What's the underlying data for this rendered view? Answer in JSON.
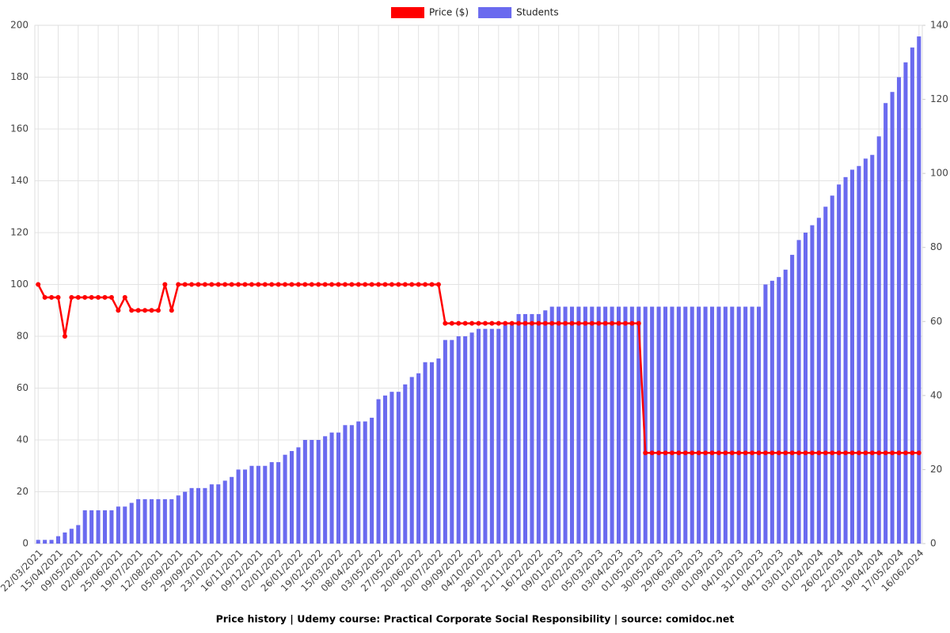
{
  "chart_data": {
    "type": "bar-line",
    "title": "Price history | Udemy course: Practical Corporate Social Responsibility | source: comidoc.net",
    "categories": [
      "22/03/2021",
      null,
      null,
      "15/04/2021",
      null,
      null,
      "09/05/2021",
      null,
      null,
      "02/06/2021",
      null,
      null,
      "25/06/2021",
      null,
      null,
      "19/07/2021",
      null,
      null,
      "12/08/2021",
      null,
      null,
      "05/09/2021",
      null,
      null,
      "29/09/2021",
      null,
      null,
      "23/10/2021",
      null,
      null,
      "16/11/2021",
      null,
      null,
      "09/12/2021",
      null,
      null,
      "02/01/2022",
      null,
      null,
      "26/01/2022",
      null,
      null,
      "19/02/2022",
      null,
      null,
      "15/03/2022",
      null,
      null,
      "08/04/2022",
      null,
      null,
      "03/05/2022",
      null,
      null,
      "27/05/2022",
      null,
      null,
      "20/06/2022",
      null,
      null,
      "20/07/2022",
      null,
      null,
      "09/09/2022",
      null,
      null,
      "04/10/2022",
      null,
      null,
      "28/10/2022",
      null,
      null,
      "21/11/2022",
      null,
      null,
      "16/12/2022",
      null,
      null,
      "09/01/2023",
      null,
      null,
      "02/02/2023",
      null,
      null,
      "05/03/2023",
      null,
      null,
      "03/04/2023",
      null,
      null,
      "01/05/2023",
      null,
      null,
      "30/05/2023",
      null,
      null,
      "29/06/2023",
      null,
      null,
      "03/08/2023",
      null,
      null,
      "01/09/2023",
      null,
      null,
      "04/10/2023",
      null,
      null,
      "31/10/2023",
      null,
      null,
      "04/12/2023",
      null,
      null,
      "03/01/2024",
      null,
      null,
      "01/02/2024",
      null,
      null,
      "26/02/2024",
      null,
      null,
      "22/03/2024",
      null,
      null,
      "19/04/2024",
      null,
      null,
      "17/05/2024",
      null,
      null,
      "16/06/2024"
    ],
    "series": [
      {
        "name": "Price ($)",
        "type": "line",
        "axis": "y",
        "color": "#ff0000",
        "values": [
          100,
          95,
          95,
          95,
          80,
          95,
          95,
          95,
          95,
          95,
          95,
          95,
          90,
          95,
          90,
          90,
          90,
          90,
          90,
          100,
          90,
          100,
          100,
          100,
          100,
          100,
          100,
          100,
          100,
          100,
          100,
          100,
          100,
          100,
          100,
          100,
          100,
          100,
          100,
          100,
          100,
          100,
          100,
          100,
          100,
          100,
          100,
          100,
          100,
          100,
          100,
          100,
          100,
          100,
          100,
          100,
          100,
          100,
          100,
          100,
          100,
          85,
          85,
          85,
          85,
          85,
          85,
          85,
          85,
          85,
          85,
          85,
          85,
          85,
          85,
          85,
          85,
          85,
          85,
          85,
          85,
          85,
          85,
          85,
          85,
          85,
          85,
          85,
          85,
          85,
          85,
          35,
          35,
          35,
          35,
          35,
          35,
          35,
          35,
          35,
          35,
          35,
          35,
          35,
          35,
          35,
          35,
          35,
          35,
          35,
          35,
          35,
          35,
          35,
          35,
          35,
          35,
          35,
          35,
          35,
          35,
          35,
          35,
          35,
          35,
          35,
          35,
          35,
          35,
          35,
          35,
          35,
          35
        ]
      },
      {
        "name": "Students",
        "type": "bar",
        "axis": "y2",
        "color": "#6a6aef",
        "values": [
          1,
          1,
          1,
          2,
          3,
          4,
          5,
          9,
          9,
          9,
          9,
          9,
          10,
          10,
          11,
          12,
          12,
          12,
          12,
          12,
          12,
          13,
          14,
          15,
          15,
          15,
          16,
          16,
          17,
          18,
          20,
          20,
          21,
          21,
          21,
          22,
          22,
          24,
          25,
          26,
          28,
          28,
          28,
          29,
          30,
          30,
          32,
          32,
          33,
          33,
          34,
          39,
          40,
          41,
          41,
          43,
          45,
          46,
          49,
          49,
          50,
          55,
          55,
          56,
          56,
          57,
          58,
          58,
          58,
          58,
          59,
          59,
          62,
          62,
          62,
          62,
          63,
          64,
          64,
          64,
          64,
          64,
          64,
          64,
          64,
          64,
          64,
          64,
          64,
          64,
          64,
          64,
          64,
          64,
          64,
          64,
          64,
          64,
          64,
          64,
          64,
          64,
          64,
          64,
          64,
          64,
          64,
          64,
          64,
          70,
          71,
          72,
          74,
          78,
          82,
          84,
          86,
          88,
          91,
          94,
          97,
          99,
          101,
          102,
          104,
          105,
          110,
          119,
          122,
          126,
          130,
          134,
          137
        ]
      }
    ],
    "ylim": [
      0,
      200
    ],
    "yticks": [
      0,
      20,
      40,
      60,
      80,
      100,
      120,
      140,
      160,
      180,
      200
    ],
    "y2lim": [
      0,
      140
    ],
    "y2ticks": [
      0,
      20,
      40,
      60,
      80,
      100,
      120,
      140
    ],
    "grid": true,
    "legend": "top"
  }
}
